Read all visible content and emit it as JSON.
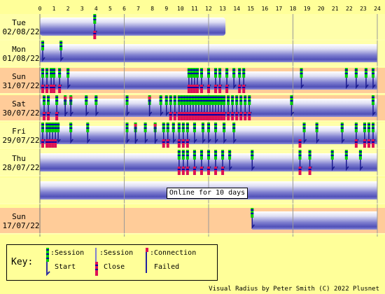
{
  "hours": [
    "0",
    "1",
    "2",
    "3",
    "4",
    "5",
    "6",
    "7",
    "8",
    "9",
    "10",
    "11",
    "12",
    "13",
    "14",
    "15",
    "16",
    "17",
    "18",
    "19",
    "20",
    "21",
    "22",
    "23",
    "24"
  ],
  "rows": [
    {
      "day": "Tue",
      "date": "02/08/22",
      "bg": "#ffffaa",
      "online": [
        [
          0,
          13.2
        ]
      ],
      "starts": [
        3.9
      ],
      "closes": [
        3.9
      ],
      "fails": []
    },
    {
      "day": "Mon",
      "date": "01/08/22",
      "bg": "#ffffaa",
      "online": [
        [
          0,
          24
        ]
      ],
      "starts": [
        0.2,
        1.5
      ],
      "closes": [],
      "fails": []
    },
    {
      "day": "Sun",
      "date": "31/07/22",
      "bg": "#ffcc99",
      "online": [
        [
          0,
          24
        ]
      ],
      "starts": [
        0.2,
        0.5,
        0.8,
        1.0,
        1.4,
        2.0,
        10.6,
        10.8,
        11.0,
        11.2,
        11.5,
        12.0,
        12.5,
        12.8,
        13.3,
        13.8,
        14.2,
        14.5,
        18.6,
        21.8,
        22.5,
        23.2,
        23.7
      ],
      "closes": [
        0.2,
        0.5,
        0.8,
        1.0,
        1.4,
        10.6,
        10.8,
        11.0,
        11.2,
        11.5,
        12.0,
        12.5,
        12.8,
        13.3,
        14.2,
        14.5
      ],
      "fails": []
    },
    {
      "day": "Sat",
      "date": "30/07/22",
      "bg": "#ffcc99",
      "online": [
        [
          0,
          24
        ]
      ],
      "starts": [
        0.3,
        0.6,
        1.2,
        1.8,
        2.2,
        3.3,
        4.0,
        6.2,
        7.8,
        8.6,
        9.0,
        9.3,
        9.6,
        9.9,
        10.1,
        10.3,
        10.5,
        10.7,
        10.9,
        11.1,
        11.3,
        11.5,
        11.7,
        11.9,
        12.1,
        12.3,
        12.5,
        12.7,
        12.9,
        13.1,
        13.4,
        13.7,
        14.0,
        14.3,
        14.6,
        14.9,
        17.9,
        23.7
      ],
      "closes": [
        0.3,
        0.6,
        1.2,
        9.3,
        9.6,
        9.9,
        10.1,
        10.3,
        10.5,
        10.7,
        10.9,
        11.1,
        11.3,
        11.5,
        11.7,
        11.9,
        12.1,
        12.3,
        12.5,
        12.7,
        12.9,
        13.1,
        13.4,
        13.7,
        14.0,
        14.3,
        14.6,
        14.9
      ],
      "fails": [
        1.8,
        2.2,
        7.8
      ]
    },
    {
      "day": "Fri",
      "date": "29/07/22",
      "bg": "#ffffaa",
      "online": [
        [
          0,
          24
        ]
      ],
      "starts": [
        0.2,
        0.5,
        0.7,
        0.9,
        1.1,
        1.3,
        2.2,
        3.4,
        6.2,
        6.8,
        7.5,
        8.2,
        8.8,
        9.1,
        9.5,
        9.9,
        10.2,
        10.5,
        11.0,
        11.6,
        12.0,
        12.5,
        13.1,
        13.8,
        18.8,
        19.7,
        21.5,
        22.5,
        23.1,
        23.4,
        23.7
      ],
      "closes": [
        0.2,
        0.5,
        0.7,
        0.9,
        1.1,
        8.8,
        9.1,
        9.9,
        10.2,
        10.5,
        18.5,
        22.5,
        23.1,
        23.4,
        23.7
      ],
      "fails": [
        6.8,
        8.2
      ]
    },
    {
      "day": "Thu",
      "date": "28/07/22",
      "bg": "#ffffaa",
      "online": [
        [
          0,
          24
        ]
      ],
      "starts": [
        9.9,
        10.2,
        10.5,
        11.0,
        11.5,
        12.0,
        12.5,
        13.0,
        13.5,
        15.1,
        18.5,
        19.2,
        20.8,
        21.8,
        22.8
      ],
      "closes": [
        9.9,
        10.2,
        10.5,
        11.0,
        11.5,
        12.0,
        12.5,
        13.0,
        18.5,
        19.2
      ],
      "fails": []
    },
    {
      "day": "",
      "date": "",
      "bg": "#ffffaa",
      "online": [
        [
          0,
          24
        ]
      ],
      "starts": [],
      "closes": [],
      "fails": []
    },
    {
      "day": "Sun",
      "date": "17/07/22",
      "bg": "#ffcc99",
      "online": [
        [
          15.1,
          24
        ]
      ],
      "starts": [
        15.1
      ],
      "closes": [],
      "fails": []
    }
  ],
  "banner": "Online for 10 days",
  "key": {
    "title": "Key:",
    "start_line1": ":Session",
    "start_line2": "Start",
    "close_line1": ":Session",
    "close_line2": "Close",
    "fail_line1": ":Connection",
    "fail_line2": "Failed"
  },
  "credit": "Visual Radius by Peter Smith (C) 2022 Plusnet"
}
